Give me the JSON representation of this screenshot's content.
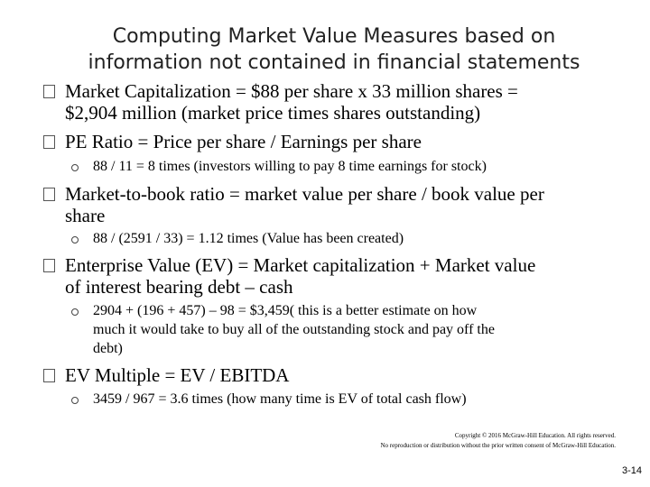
{
  "title": {
    "line1": "Computing Market Value Measures based on",
    "line2": "information not contained in financial statements"
  },
  "items": [
    {
      "lines": [
        "Market Capitalization = $88 per share x 33 million shares =",
        "$2,904 million (market price times shares outstanding)"
      ]
    },
    {
      "lines": [
        "PE Ratio = Price per share / Earnings per share"
      ],
      "sub": [
        "88 / 11 = 8 times (investors willing to pay 8 time earnings for stock)"
      ]
    },
    {
      "lines": [
        "Market-to-book ratio = market value per share / book value per",
        "share"
      ],
      "sub": [
        "88 / (2591 / 33) = 1.12 times (Value has been created)"
      ]
    },
    {
      "lines": [
        "Enterprise Value (EV) = Market capitalization + Market value",
        "of interest bearing debt – cash"
      ],
      "sub": [
        "2904 + (196 + 457) – 98 = $3,459( this is a better estimate on how",
        "much it would take to buy all of the outstanding stock and pay off the",
        "debt)"
      ]
    },
    {
      "lines": [
        "EV Multiple = EV / EBITDA"
      ],
      "sub": [
        "3459 / 967 = 3.6 times (how many time is EV of total cash flow)"
      ]
    }
  ],
  "footer": {
    "line1": "Copyright © 2016 McGraw-Hill Education. All rights reserved.",
    "line2": "No reproduction or distribution without the prior written consent of McGraw-Hill Education."
  },
  "page_number": "3-14"
}
